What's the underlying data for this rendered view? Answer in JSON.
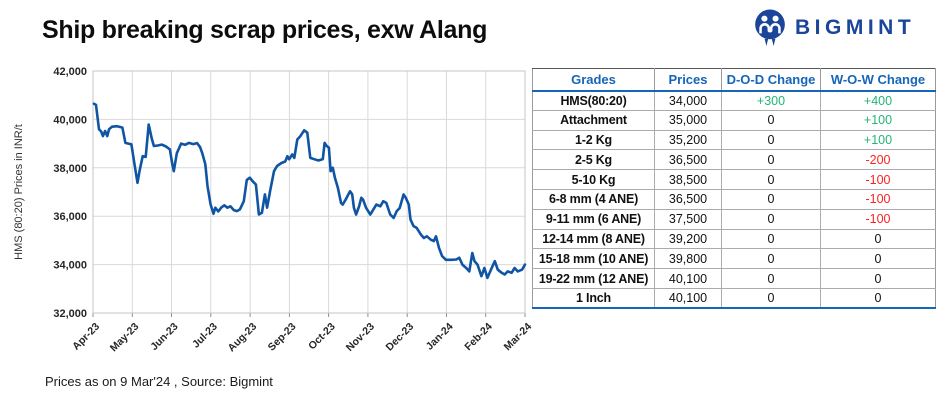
{
  "title": "Ship breaking scrap prices, exw Alang",
  "logo": {
    "text": "BIGMINT",
    "color": "#1B4599"
  },
  "footer": "Prices as on 9 Mar'24 , Source:  Bigmint",
  "chart_data": {
    "type": "line",
    "ylabel": "HMS (80:20) Prices in INR/t",
    "x_labels": [
      "Apr-23",
      "May-23",
      "Jun-23",
      "Jul-23",
      "Aug-23",
      "Sep-23",
      "Oct-23",
      "Nov-23",
      "Dec-23",
      "Jan-24",
      "Feb-24",
      "Mar-24"
    ],
    "ylim": [
      32000,
      42000
    ],
    "y_ticks": [
      32000,
      34000,
      36000,
      38000,
      40000,
      42000
    ],
    "grid": true,
    "legend": "none",
    "line_color": "#0F55A4",
    "series": [
      {
        "name": "HMS (80:20) price, INR/t",
        "points": [
          [
            0.002,
            40650
          ],
          [
            0.007,
            40600
          ],
          [
            0.014,
            39590
          ],
          [
            0.019,
            39500
          ],
          [
            0.023,
            39310
          ],
          [
            0.028,
            39520
          ],
          [
            0.033,
            39310
          ],
          [
            0.037,
            39590
          ],
          [
            0.044,
            39700
          ],
          [
            0.056,
            39720
          ],
          [
            0.068,
            39660
          ],
          [
            0.075,
            39030
          ],
          [
            0.082,
            39000
          ],
          [
            0.089,
            38970
          ],
          [
            0.096,
            38150
          ],
          [
            0.103,
            37380
          ],
          [
            0.108,
            37900
          ],
          [
            0.115,
            38480
          ],
          [
            0.122,
            38450
          ],
          [
            0.129,
            39790
          ],
          [
            0.136,
            39200
          ],
          [
            0.141,
            38900
          ],
          [
            0.15,
            38920
          ],
          [
            0.159,
            38960
          ],
          [
            0.169,
            38880
          ],
          [
            0.178,
            38760
          ],
          [
            0.183,
            38200
          ],
          [
            0.187,
            37860
          ],
          [
            0.194,
            38600
          ],
          [
            0.204,
            39000
          ],
          [
            0.213,
            38950
          ],
          [
            0.222,
            39030
          ],
          [
            0.232,
            38980
          ],
          [
            0.241,
            39020
          ],
          [
            0.248,
            38850
          ],
          [
            0.253,
            38600
          ],
          [
            0.26,
            38150
          ],
          [
            0.265,
            37250
          ],
          [
            0.272,
            36500
          ],
          [
            0.279,
            36100
          ],
          [
            0.283,
            36350
          ],
          [
            0.29,
            36200
          ],
          [
            0.297,
            36360
          ],
          [
            0.304,
            36450
          ],
          [
            0.311,
            36350
          ],
          [
            0.318,
            36410
          ],
          [
            0.326,
            36250
          ],
          [
            0.333,
            36210
          ],
          [
            0.34,
            36280
          ],
          [
            0.349,
            36620
          ],
          [
            0.356,
            37500
          ],
          [
            0.363,
            37590
          ],
          [
            0.37,
            37440
          ],
          [
            0.377,
            37310
          ],
          [
            0.384,
            36070
          ],
          [
            0.391,
            36140
          ],
          [
            0.398,
            36900
          ],
          [
            0.403,
            36350
          ],
          [
            0.41,
            37040
          ],
          [
            0.419,
            37860
          ],
          [
            0.426,
            38070
          ],
          [
            0.436,
            38200
          ],
          [
            0.445,
            38260
          ],
          [
            0.45,
            38480
          ],
          [
            0.454,
            38350
          ],
          [
            0.461,
            38550
          ],
          [
            0.466,
            38410
          ],
          [
            0.473,
            39170
          ],
          [
            0.48,
            39310
          ],
          [
            0.489,
            39550
          ],
          [
            0.496,
            39450
          ],
          [
            0.503,
            38410
          ],
          [
            0.513,
            38350
          ],
          [
            0.522,
            38300
          ],
          [
            0.532,
            38360
          ],
          [
            0.536,
            39030
          ],
          [
            0.541,
            38900
          ],
          [
            0.546,
            38830
          ],
          [
            0.55,
            37860
          ],
          [
            0.555,
            38000
          ],
          [
            0.56,
            37590
          ],
          [
            0.567,
            37170
          ],
          [
            0.574,
            36550
          ],
          [
            0.578,
            36480
          ],
          [
            0.585,
            36690
          ],
          [
            0.595,
            37030
          ],
          [
            0.6,
            36900
          ],
          [
            0.604,
            36350
          ],
          [
            0.609,
            36070
          ],
          [
            0.616,
            36410
          ],
          [
            0.621,
            36760
          ],
          [
            0.625,
            36690
          ],
          [
            0.632,
            36350
          ],
          [
            0.642,
            36070
          ],
          [
            0.649,
            36280
          ],
          [
            0.656,
            36480
          ],
          [
            0.665,
            36410
          ],
          [
            0.672,
            36620
          ],
          [
            0.679,
            36550
          ],
          [
            0.688,
            36070
          ],
          [
            0.696,
            35930
          ],
          [
            0.703,
            36210
          ],
          [
            0.71,
            36340
          ],
          [
            0.719,
            36900
          ],
          [
            0.724,
            36760
          ],
          [
            0.731,
            36480
          ],
          [
            0.735,
            35860
          ],
          [
            0.742,
            35590
          ],
          [
            0.749,
            35520
          ],
          [
            0.759,
            35240
          ],
          [
            0.766,
            35100
          ],
          [
            0.773,
            35170
          ],
          [
            0.782,
            35030
          ],
          [
            0.789,
            34970
          ],
          [
            0.794,
            35170
          ],
          [
            0.801,
            34690
          ],
          [
            0.808,
            34350
          ],
          [
            0.817,
            34200
          ],
          [
            0.829,
            34200
          ],
          [
            0.841,
            34210
          ],
          [
            0.848,
            34280
          ],
          [
            0.855,
            34000
          ],
          [
            0.864,
            33860
          ],
          [
            0.871,
            33720
          ],
          [
            0.878,
            34480
          ],
          [
            0.883,
            34140
          ],
          [
            0.89,
            34000
          ],
          [
            0.899,
            33520
          ],
          [
            0.906,
            33860
          ],
          [
            0.913,
            33450
          ],
          [
            0.923,
            33860
          ],
          [
            0.93,
            34140
          ],
          [
            0.937,
            33790
          ],
          [
            0.946,
            33660
          ],
          [
            0.953,
            33590
          ],
          [
            0.96,
            33720
          ],
          [
            0.969,
            33660
          ],
          [
            0.976,
            33860
          ],
          [
            0.983,
            33720
          ],
          [
            0.993,
            33790
          ],
          [
            1.0,
            34000
          ]
        ]
      }
    ]
  },
  "table": {
    "headers": [
      "Grades",
      "Prices",
      "D-O-D Change",
      "W-O-W Change"
    ],
    "header_color": "#1565B8",
    "positive_color": "#23B573",
    "negative_color": "#FB2222",
    "rows": [
      {
        "grade": "HMS(80:20)",
        "price": "34,000",
        "dod": "+300",
        "wow": "+400"
      },
      {
        "grade": "Attachment",
        "price": "35,000",
        "dod": "0",
        "wow": "+100"
      },
      {
        "grade": "1-2 Kg",
        "price": "35,200",
        "dod": "0",
        "wow": "+100"
      },
      {
        "grade": "2-5 Kg",
        "price": "36,500",
        "dod": "0",
        "wow": "-200"
      },
      {
        "grade": "5-10 Kg",
        "price": "38,500",
        "dod": "0",
        "wow": "-100"
      },
      {
        "grade": "6-8 mm (4 ANE)",
        "price": "36,500",
        "dod": "0",
        "wow": "-100"
      },
      {
        "grade": "9-11 mm (6 ANE)",
        "price": "37,500",
        "dod": "0",
        "wow": "-100"
      },
      {
        "grade": "12-14 mm (8 ANE)",
        "price": "39,200",
        "dod": "0",
        "wow": "0"
      },
      {
        "grade": "15-18 mm (10 ANE)",
        "price": "39,800",
        "dod": "0",
        "wow": "0"
      },
      {
        "grade": "19-22 mm (12 ANE)",
        "price": "40,100",
        "dod": "0",
        "wow": "0"
      },
      {
        "grade": "1 Inch",
        "price": "40,100",
        "dod": "0",
        "wow": "0"
      }
    ]
  }
}
